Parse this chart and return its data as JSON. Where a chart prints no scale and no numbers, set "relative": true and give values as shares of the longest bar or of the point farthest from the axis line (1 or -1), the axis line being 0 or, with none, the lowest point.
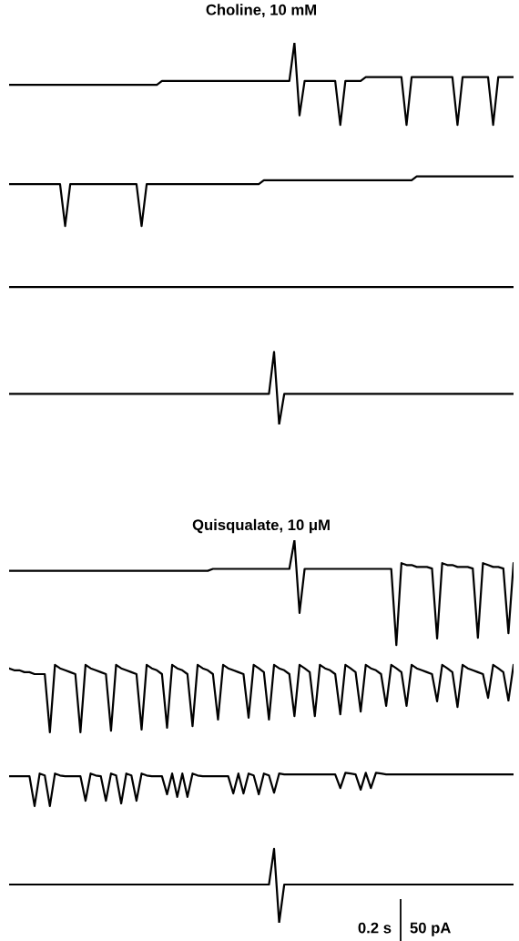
{
  "chart_data": [
    {
      "type": "line",
      "title": "Choline, 10 mM",
      "relative": true,
      "categories": [
        null,
        null,
        null,
        null,
        null,
        null,
        null,
        null,
        null,
        null,
        null,
        null,
        null,
        null,
        null,
        null,
        null,
        null,
        null,
        null,
        null,
        null,
        null,
        null,
        null,
        null,
        null,
        null,
        null,
        null,
        null,
        null,
        null,
        null,
        null,
        null,
        null,
        null,
        null,
        null,
        null,
        null,
        null,
        null,
        null,
        null,
        null,
        null,
        null,
        null,
        null,
        null,
        null,
        null,
        null,
        null,
        null,
        null,
        null,
        null,
        null,
        null,
        null,
        null,
        null,
        null,
        null,
        null,
        null,
        null,
        null,
        null,
        null,
        null,
        null,
        null,
        null,
        null,
        null,
        null,
        null,
        null,
        null,
        null,
        null,
        null,
        null,
        null,
        null,
        null,
        null,
        null,
        null,
        null,
        null,
        null,
        null,
        null,
        null,
        null
      ],
      "series": [
        {
          "color": "#000000",
          "values": [
            0.89,
            0.89,
            0.89,
            0.89,
            0.89,
            0.89,
            0.89,
            0.89,
            0.89,
            0.89,
            0.89,
            0.89,
            0.89,
            0.89,
            0.89,
            0.89,
            0.89,
            0.89,
            0.89,
            0.89,
            0.89,
            0.89,
            0.89,
            0.89,
            0.89,
            0.89,
            0.89,
            0.89,
            0.89,
            0.89,
            0.9,
            0.9,
            0.9,
            0.9,
            0.9,
            0.9,
            0.9,
            0.9,
            0.9,
            0.9,
            0.9,
            0.9,
            0.9,
            0.9,
            0.9,
            0.9,
            0.9,
            0.9,
            0.9,
            0.9,
            0.9,
            0.9,
            0.9,
            0.9,
            0.9,
            0.9,
            1.0,
            0.81,
            0.9,
            0.9,
            0.9,
            0.9,
            0.9,
            0.9,
            0.9,
            0.785,
            0.9,
            0.9,
            0.9,
            0.9,
            0.91,
            0.91,
            0.91,
            0.91,
            0.91,
            0.91,
            0.91,
            0.91,
            0.785,
            0.91,
            0.91,
            0.91,
            0.91,
            0.91,
            0.91,
            0.91,
            0.91,
            0.91,
            0.785,
            0.91,
            0.91,
            0.91,
            0.91,
            0.91,
            0.91,
            0.785,
            0.91,
            0.91,
            0.91,
            0.91
          ]
        },
        {
          "color": "#000000",
          "values": [
            0.63,
            0.63,
            0.63,
            0.63,
            0.63,
            0.63,
            0.63,
            0.63,
            0.63,
            0.63,
            0.63,
            0.52,
            0.63,
            0.63,
            0.63,
            0.63,
            0.63,
            0.63,
            0.63,
            0.63,
            0.63,
            0.63,
            0.63,
            0.63,
            0.63,
            0.63,
            0.52,
            0.63,
            0.63,
            0.63,
            0.63,
            0.63,
            0.63,
            0.63,
            0.63,
            0.63,
            0.63,
            0.63,
            0.63,
            0.63,
            0.63,
            0.63,
            0.63,
            0.63,
            0.63,
            0.63,
            0.63,
            0.63,
            0.63,
            0.63,
            0.64,
            0.64,
            0.64,
            0.64,
            0.64,
            0.64,
            0.64,
            0.64,
            0.64,
            0.64,
            0.64,
            0.64,
            0.64,
            0.64,
            0.64,
            0.64,
            0.64,
            0.64,
            0.64,
            0.64,
            0.64,
            0.64,
            0.64,
            0.64,
            0.64,
            0.64,
            0.64,
            0.64,
            0.64,
            0.64,
            0.65,
            0.65,
            0.65,
            0.65,
            0.65,
            0.65,
            0.65,
            0.65,
            0.65,
            0.65,
            0.65,
            0.65,
            0.65,
            0.65,
            0.65,
            0.65,
            0.65,
            0.65,
            0.65,
            0.65
          ]
        },
        {
          "color": "#000000",
          "values": [
            0.36,
            0.36,
            0.36,
            0.36,
            0.36,
            0.36,
            0.36,
            0.36,
            0.36,
            0.36,
            0.36,
            0.36,
            0.36,
            0.36,
            0.36,
            0.36,
            0.36,
            0.36,
            0.36,
            0.36,
            0.36,
            0.36,
            0.36,
            0.36,
            0.36,
            0.36,
            0.36,
            0.36,
            0.36,
            0.36,
            0.36,
            0.36,
            0.36,
            0.36,
            0.36,
            0.36,
            0.36,
            0.36,
            0.36,
            0.36,
            0.36,
            0.36,
            0.36,
            0.36,
            0.36,
            0.36,
            0.36,
            0.36,
            0.36,
            0.36,
            0.36,
            0.36,
            0.36,
            0.36,
            0.36,
            0.36,
            0.36,
            0.36,
            0.36,
            0.36,
            0.36,
            0.36,
            0.36,
            0.36,
            0.36,
            0.36,
            0.36,
            0.36,
            0.36,
            0.36,
            0.36,
            0.36,
            0.36,
            0.36,
            0.36,
            0.36,
            0.36,
            0.36,
            0.36,
            0.36,
            0.36,
            0.36,
            0.36,
            0.36,
            0.36,
            0.36,
            0.36,
            0.36,
            0.36,
            0.36,
            0.36,
            0.36,
            0.36,
            0.36,
            0.36,
            0.36,
            0.36,
            0.36,
            0.36,
            0.36
          ]
        },
        {
          "color": "#000000",
          "values": [
            0.08,
            0.08,
            0.08,
            0.08,
            0.08,
            0.08,
            0.08,
            0.08,
            0.08,
            0.08,
            0.08,
            0.08,
            0.08,
            0.08,
            0.08,
            0.08,
            0.08,
            0.08,
            0.08,
            0.08,
            0.08,
            0.08,
            0.08,
            0.08,
            0.08,
            0.08,
            0.08,
            0.08,
            0.08,
            0.08,
            0.08,
            0.08,
            0.08,
            0.08,
            0.08,
            0.08,
            0.08,
            0.08,
            0.08,
            0.08,
            0.08,
            0.08,
            0.08,
            0.08,
            0.08,
            0.08,
            0.08,
            0.08,
            0.08,
            0.08,
            0.08,
            0.08,
            0.19,
            0.0,
            0.08,
            0.08,
            0.08,
            0.08,
            0.08,
            0.08,
            0.08,
            0.08,
            0.08,
            0.08,
            0.08,
            0.08,
            0.08,
            0.08,
            0.08,
            0.08,
            0.08,
            0.08,
            0.08,
            0.08,
            0.08,
            0.08,
            0.08,
            0.08,
            0.08,
            0.08,
            0.08,
            0.08,
            0.08,
            0.08,
            0.08,
            0.08,
            0.08,
            0.08,
            0.08,
            0.08,
            0.08,
            0.08,
            0.08,
            0.08,
            0.08,
            0.08,
            0.08,
            0.08,
            0.08,
            0.08
          ]
        }
      ]
    },
    {
      "type": "line",
      "title": "Quisqualate, 10 μM",
      "relative": true,
      "categories": [
        null,
        null,
        null,
        null,
        null,
        null,
        null,
        null,
        null,
        null,
        null,
        null,
        null,
        null,
        null,
        null,
        null,
        null,
        null,
        null,
        null,
        null,
        null,
        null,
        null,
        null,
        null,
        null,
        null,
        null,
        null,
        null,
        null,
        null,
        null,
        null,
        null,
        null,
        null,
        null,
        null,
        null,
        null,
        null,
        null,
        null,
        null,
        null,
        null,
        null,
        null,
        null,
        null,
        null,
        null,
        null,
        null,
        null,
        null,
        null,
        null,
        null,
        null,
        null,
        null,
        null,
        null,
        null,
        null,
        null,
        null,
        null,
        null,
        null,
        null,
        null,
        null,
        null,
        null,
        null,
        null,
        null,
        null,
        null,
        null,
        null,
        null,
        null,
        null,
        null,
        null,
        null,
        null,
        null,
        null,
        null,
        null,
        null,
        null,
        null
      ],
      "annotations": [
        "0.2 s",
        "50 pA"
      ],
      "series": [
        {
          "color": "#000000",
          "values": [
            0.92,
            0.92,
            0.92,
            0.92,
            0.92,
            0.92,
            0.92,
            0.92,
            0.92,
            0.92,
            0.92,
            0.92,
            0.92,
            0.92,
            0.92,
            0.92,
            0.92,
            0.92,
            0.92,
            0.92,
            0.92,
            0.92,
            0.92,
            0.92,
            0.92,
            0.92,
            0.92,
            0.92,
            0.92,
            0.92,
            0.92,
            0.92,
            0.92,
            0.92,
            0.92,
            0.92,
            0.92,
            0.92,
            0.92,
            0.92,
            0.925,
            0.925,
            0.925,
            0.925,
            0.925,
            0.925,
            0.925,
            0.925,
            0.925,
            0.925,
            0.925,
            0.925,
            0.925,
            0.925,
            0.925,
            0.925,
            1.0,
            0.81,
            0.925,
            0.925,
            0.925,
            0.925,
            0.925,
            0.925,
            0.925,
            0.925,
            0.925,
            0.925,
            0.925,
            0.925,
            0.925,
            0.925,
            0.925,
            0.925,
            0.925,
            0.925,
            0.726,
            0.94,
            0.935,
            0.935,
            0.93,
            0.93,
            0.93,
            0.926,
            0.743,
            0.94,
            0.935,
            0.935,
            0.93,
            0.93,
            0.93,
            0.926,
            0.745,
            0.94,
            0.935,
            0.93,
            0.93,
            0.926,
            0.757,
            0.94
          ]
        },
        {
          "color": "#000000",
          "values": [
            0.665,
            0.66,
            0.66,
            0.655,
            0.655,
            0.65,
            0.65,
            0.65,
            0.498,
            0.674,
            0.665,
            0.66,
            0.655,
            0.65,
            0.498,
            0.674,
            0.665,
            0.66,
            0.655,
            0.65,
            0.502,
            0.674,
            0.665,
            0.66,
            0.655,
            0.65,
            0.505,
            0.674,
            0.665,
            0.66,
            0.65,
            0.51,
            0.674,
            0.665,
            0.66,
            0.65,
            0.514,
            0.674,
            0.665,
            0.66,
            0.65,
            0.531,
            0.674,
            0.665,
            0.66,
            0.655,
            0.65,
            0.536,
            0.674,
            0.665,
            0.655,
            0.531,
            0.674,
            0.665,
            0.66,
            0.65,
            0.54,
            0.674,
            0.665,
            0.655,
            0.54,
            0.674,
            0.665,
            0.66,
            0.65,
            0.545,
            0.674,
            0.665,
            0.655,
            0.552,
            0.674,
            0.665,
            0.66,
            0.65,
            0.567,
            0.674,
            0.665,
            0.655,
            0.567,
            0.674,
            0.665,
            0.66,
            0.655,
            0.65,
            0.579,
            0.674,
            0.665,
            0.655,
            0.564,
            0.674,
            0.665,
            0.66,
            0.655,
            0.65,
            0.588,
            0.674,
            0.665,
            0.655,
            0.581,
            0.674
          ]
        },
        {
          "color": "#000000",
          "values": [
            0.383,
            0.383,
            0.383,
            0.383,
            0.383,
            0.305,
            0.39,
            0.385,
            0.305,
            0.39,
            0.385,
            0.383,
            0.383,
            0.383,
            0.383,
            0.319,
            0.39,
            0.385,
            0.383,
            0.319,
            0.39,
            0.385,
            0.312,
            0.39,
            0.385,
            0.319,
            0.39,
            0.385,
            0.383,
            0.383,
            0.383,
            0.336,
            0.39,
            0.329,
            0.39,
            0.329,
            0.39,
            0.385,
            0.383,
            0.383,
            0.383,
            0.383,
            0.383,
            0.383,
            0.338,
            0.39,
            0.338,
            0.39,
            0.385,
            0.336,
            0.39,
            0.385,
            0.34,
            0.39,
            0.388,
            0.388,
            0.388,
            0.388,
            0.388,
            0.388,
            0.388,
            0.388,
            0.388,
            0.388,
            0.388,
            0.352,
            0.392,
            0.39,
            0.388,
            0.348,
            0.392,
            0.352,
            0.392,
            0.39,
            0.388,
            0.388,
            0.388,
            0.388,
            0.388,
            0.388,
            0.388,
            0.388,
            0.388,
            0.388,
            0.388,
            0.388,
            0.388,
            0.388,
            0.388,
            0.388,
            0.388,
            0.388,
            0.388,
            0.388,
            0.388,
            0.388,
            0.388,
            0.388,
            0.388,
            0.388
          ]
        },
        {
          "color": "#000000",
          "values": [
            0.1,
            0.1,
            0.1,
            0.1,
            0.1,
            0.1,
            0.1,
            0.1,
            0.1,
            0.1,
            0.1,
            0.1,
            0.1,
            0.1,
            0.1,
            0.1,
            0.1,
            0.1,
            0.1,
            0.1,
            0.1,
            0.1,
            0.1,
            0.1,
            0.1,
            0.1,
            0.1,
            0.1,
            0.1,
            0.1,
            0.1,
            0.1,
            0.1,
            0.1,
            0.1,
            0.1,
            0.1,
            0.1,
            0.1,
            0.1,
            0.1,
            0.1,
            0.1,
            0.1,
            0.1,
            0.1,
            0.1,
            0.1,
            0.1,
            0.1,
            0.1,
            0.1,
            0.193,
            0.0,
            0.1,
            0.1,
            0.1,
            0.1,
            0.1,
            0.1,
            0.1,
            0.1,
            0.1,
            0.1,
            0.1,
            0.1,
            0.1,
            0.1,
            0.1,
            0.1,
            0.1,
            0.1,
            0.1,
            0.1,
            0.1,
            0.1,
            0.1,
            0.1,
            0.1,
            0.1,
            0.1,
            0.1,
            0.1,
            0.1,
            0.1,
            0.1,
            0.1,
            0.1,
            0.1,
            0.1,
            0.1,
            0.1,
            0.1,
            0.1,
            0.1,
            0.1,
            0.1,
            0.1,
            0.1,
            0.1
          ]
        }
      ]
    }
  ]
}
